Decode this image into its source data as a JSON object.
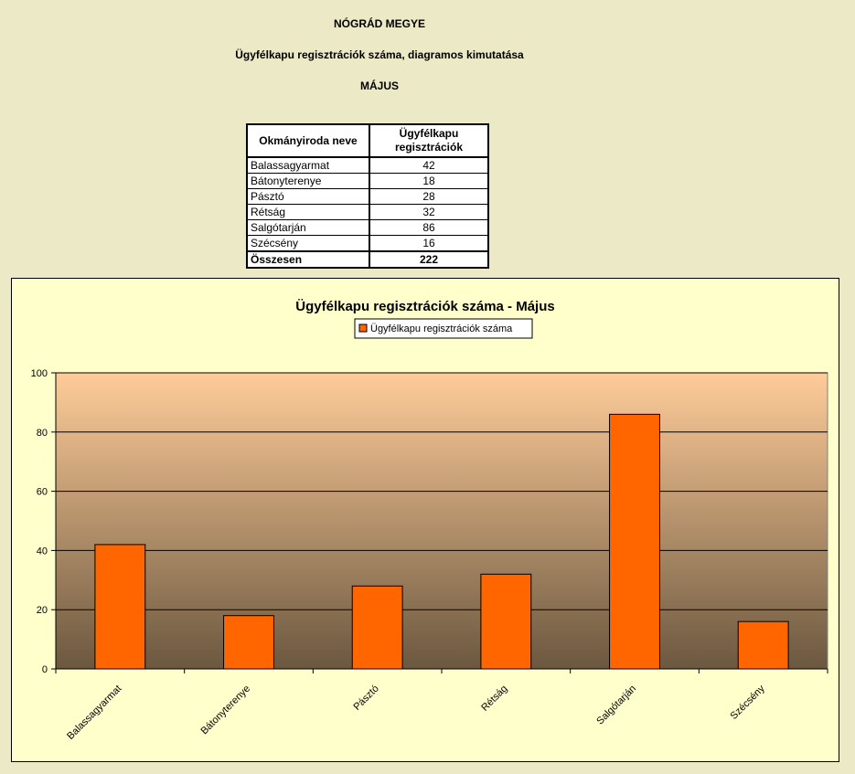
{
  "header": {
    "county": "NÓGRÁD MEGYE",
    "subtitle": "Ügyfélkapu regisztrációk száma, diagramos kimutatása",
    "month": "MÁJUS"
  },
  "table": {
    "col1_header": "Okmányiroda neve",
    "col2_header": "Ügyfélkapu regisztrációk",
    "rows": [
      {
        "name": "Balassagyarmat",
        "value": "42"
      },
      {
        "name": "Bátonyterenye",
        "value": "18"
      },
      {
        "name": "Pásztó",
        "value": "28"
      },
      {
        "name": "Rétság",
        "value": "32"
      },
      {
        "name": "Salgótarján",
        "value": "86"
      },
      {
        "name": "Szécsény",
        "value": "16"
      }
    ],
    "total_label": "Összesen",
    "total_value": "222"
  },
  "chart_data": {
    "type": "bar",
    "title": "Ügyfélkapu regisztrációk száma - Május",
    "categories": [
      "Balassagyarmat",
      "Bátonyterenye",
      "Pásztó",
      "Rétság",
      "Salgótarján",
      "Szécsény"
    ],
    "series": [
      {
        "name": "Ügyfélkapu regisztrációk száma",
        "values": [
          42,
          18,
          28,
          32,
          86,
          16
        ],
        "color": "#FF6600"
      }
    ],
    "ylim": [
      0,
      100
    ],
    "yticks": [
      0,
      20,
      40,
      60,
      80,
      100
    ],
    "xlabel": "",
    "ylabel": "",
    "grid": true,
    "legend": "top-center",
    "plot_gradient": [
      "#FFCC99",
      "#6B5840"
    ],
    "background": "#FFFFCC"
  }
}
